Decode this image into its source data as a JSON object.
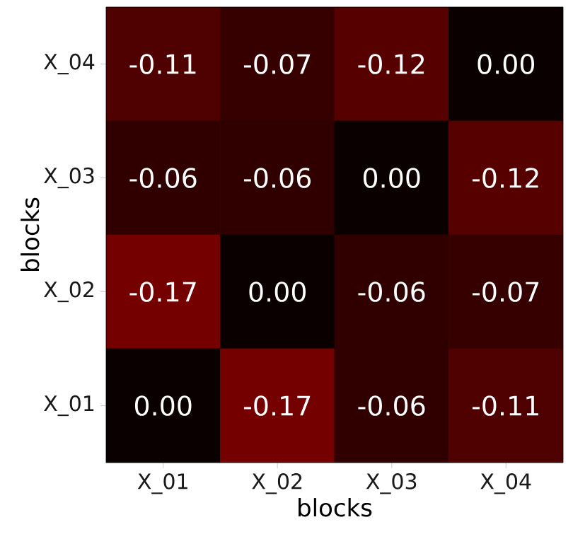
{
  "chart_data": {
    "type": "heatmap",
    "xlabel": "blocks",
    "ylabel": "blocks",
    "categories": [
      "X_01",
      "X_02",
      "X_03",
      "X_04"
    ],
    "y_categories": [
      "X_04",
      "X_03",
      "X_02",
      "X_01"
    ],
    "cells": [
      [
        -0.11,
        -0.07,
        -0.12,
        0.0
      ],
      [
        -0.06,
        -0.06,
        0.0,
        -0.12
      ],
      [
        -0.17,
        0.0,
        -0.06,
        -0.07
      ],
      [
        0.0,
        -0.17,
        -0.06,
        -0.11
      ]
    ],
    "cell_labels": [
      [
        "-0.11",
        "-0.07",
        "-0.12",
        "0.00"
      ],
      [
        "-0.06",
        "-0.06",
        "0.00",
        "-0.12"
      ],
      [
        "-0.17",
        "0.00",
        "-0.06",
        "-0.07"
      ],
      [
        "0.00",
        "-0.17",
        "-0.06",
        "-0.11"
      ]
    ]
  }
}
